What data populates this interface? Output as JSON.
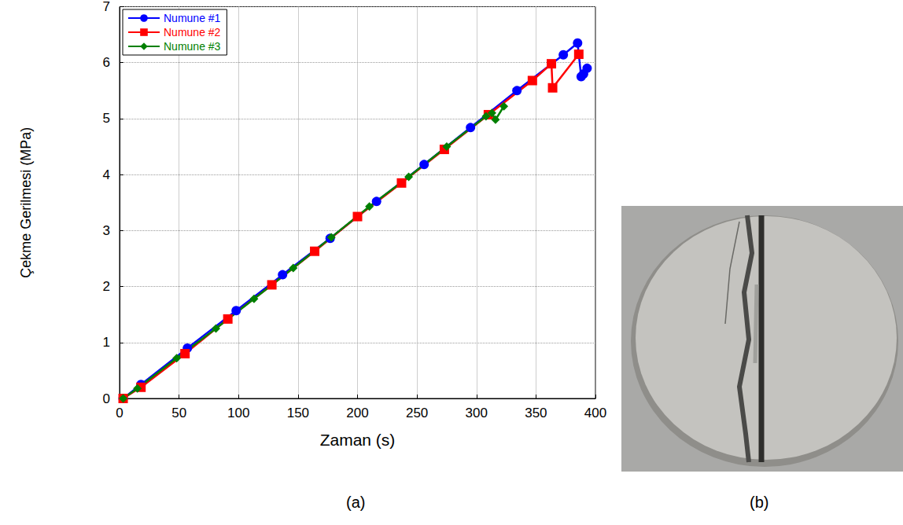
{
  "chart_data": {
    "type": "line",
    "x_label": "Zaman (s)",
    "y_label": "Çekme Gerilmesi (MPa)",
    "xlim": [
      0,
      400
    ],
    "xticks": [
      0,
      50,
      100,
      150,
      200,
      250,
      300,
      350,
      400
    ],
    "ylim": [
      0,
      7
    ],
    "yticks": [
      0,
      1,
      2,
      3,
      4,
      5,
      6,
      7
    ],
    "grid": true,
    "legend": "upper left",
    "series": [
      {
        "name": "Numune #1",
        "color": "#0000ff",
        "marker": "circle",
        "x": [
          3,
          18,
          57,
          98,
          137,
          177,
          216,
          256,
          295,
          334,
          373,
          385,
          388,
          390,
          393
        ],
        "values": [
          0,
          0.25,
          0.9,
          1.57,
          2.21,
          2.86,
          3.52,
          4.18,
          4.84,
          5.5,
          6.14,
          6.35,
          5.75,
          5.8,
          5.9
        ]
      },
      {
        "name": "Numune #2",
        "color": "#ff0000",
        "marker": "square",
        "x": [
          3,
          18,
          55,
          91,
          128,
          164,
          200,
          237,
          273,
          310,
          347,
          363,
          364,
          386
        ],
        "values": [
          0,
          0.2,
          0.8,
          1.42,
          2.03,
          2.63,
          3.25,
          3.85,
          4.45,
          5.07,
          5.68,
          5.98,
          5.55,
          6.15
        ]
      },
      {
        "name": "Numune #3",
        "color": "#008000",
        "marker": "diamond",
        "x": [
          3,
          15,
          48,
          81,
          113,
          146,
          178,
          210,
          243,
          275,
          308,
          313,
          316,
          323
        ],
        "values": [
          0,
          0.18,
          0.72,
          1.25,
          1.78,
          2.33,
          2.88,
          3.43,
          3.96,
          4.5,
          5.04,
          5.1,
          4.98,
          5.22
        ]
      }
    ]
  },
  "figure": {
    "panels": [
      "(a)",
      "(b)"
    ]
  }
}
